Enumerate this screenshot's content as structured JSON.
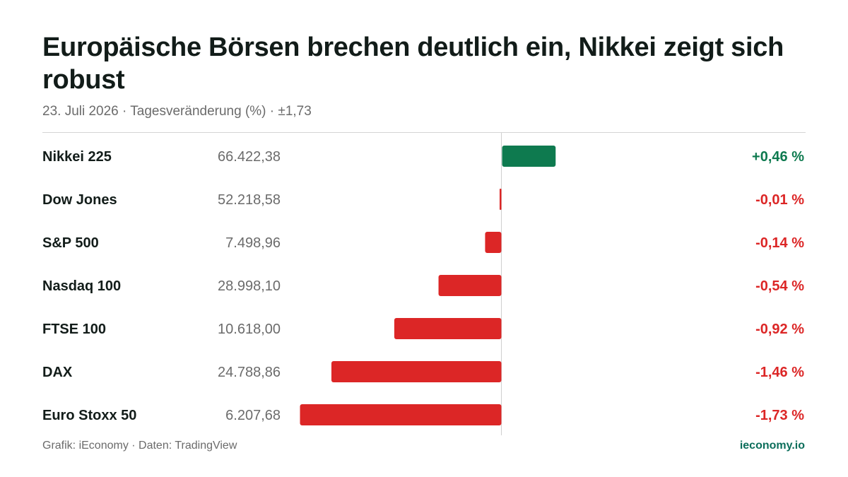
{
  "header": {
    "title": "Europäische Börsen brechen deutlich ein, Nikkei zeigt sich robust",
    "subtitle": "23. Juli 2026 · Tagesveränderung (%) · ±1,73"
  },
  "footer": {
    "source": "Grafik: iEconomy · Daten: TradingView",
    "brand": "ieconomy.io"
  },
  "colors": {
    "positive": "#0e7a4f",
    "negative": "#dc2626",
    "text": "#121c19",
    "muted": "#6b6b6b",
    "brand": "#0c6e5b"
  },
  "chart_data": {
    "type": "bar",
    "orientation": "horizontal",
    "unit": "%",
    "xlim": [
      -1.73,
      1.73
    ],
    "grid": false,
    "rows": [
      {
        "name": "Nikkei 225",
        "level": "66.422,38",
        "change": 0.46,
        "label": "+0,46 %"
      },
      {
        "name": "Dow Jones",
        "level": "52.218,58",
        "change": -0.01,
        "label": "-0,01 %"
      },
      {
        "name": "S&P 500",
        "level": "7.498,96",
        "change": -0.14,
        "label": "-0,14 %"
      },
      {
        "name": "Nasdaq 100",
        "level": "28.998,10",
        "change": -0.54,
        "label": "-0,54 %"
      },
      {
        "name": "FTSE 100",
        "level": "10.618,00",
        "change": -0.92,
        "label": "-0,92 %"
      },
      {
        "name": "DAX",
        "level": "24.788,86",
        "change": -1.46,
        "label": "-1,46 %"
      },
      {
        "name": "Euro Stoxx 50",
        "level": "6.207,68",
        "change": -1.73,
        "label": "-1,73 %"
      }
    ]
  }
}
